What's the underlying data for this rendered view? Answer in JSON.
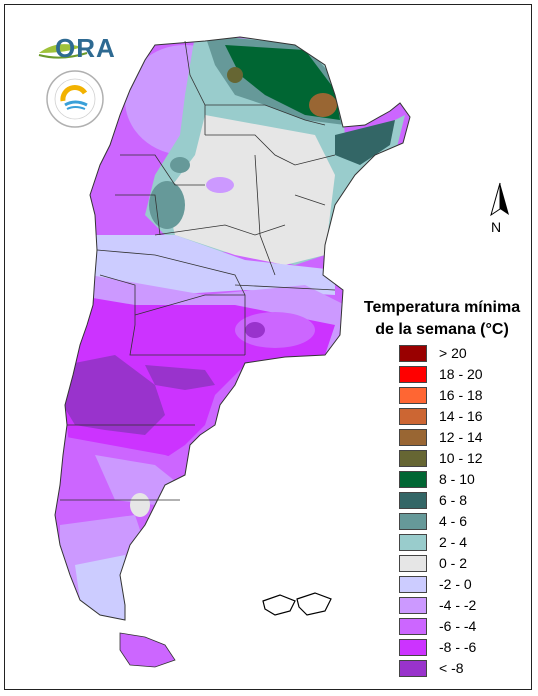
{
  "logo": {
    "ora_text": "ORA",
    "smn_icon": "smn-seal-icon",
    "ora_icon": "ora-leaf-icon"
  },
  "north": {
    "label": "N",
    "icon": "north-arrow-icon"
  },
  "legend": {
    "title_line1": "Temperatura mínima",
    "title_line2": "de la semana (°C)",
    "items": [
      {
        "label": "> 20",
        "color": "#990000"
      },
      {
        "label": "18 - 20",
        "color": "#ff0000"
      },
      {
        "label": "16 - 18",
        "color": "#ff6633"
      },
      {
        "label": "14 - 16",
        "color": "#cc6633"
      },
      {
        "label": "12 - 14",
        "color": "#996633"
      },
      {
        "label": "10 - 12",
        "color": "#666633"
      },
      {
        "label": "8 - 10",
        "color": "#006633"
      },
      {
        "label": "6 - 8",
        "color": "#336666"
      },
      {
        "label": "4 - 6",
        "color": "#669999"
      },
      {
        "label": "2 - 4",
        "color": "#99cccc"
      },
      {
        "label": "0 - 2",
        "color": "#e6e6e6"
      },
      {
        "label": "-2 - 0",
        "color": "#ccccff"
      },
      {
        "label": "-4 - -2",
        "color": "#cc99ff"
      },
      {
        "label": "-6 - -4",
        "color": "#cc66ff"
      },
      {
        "label": "-8 - -6",
        "color": "#cc33ff"
      },
      {
        "label": "< -8",
        "color": "#9933cc"
      }
    ]
  }
}
